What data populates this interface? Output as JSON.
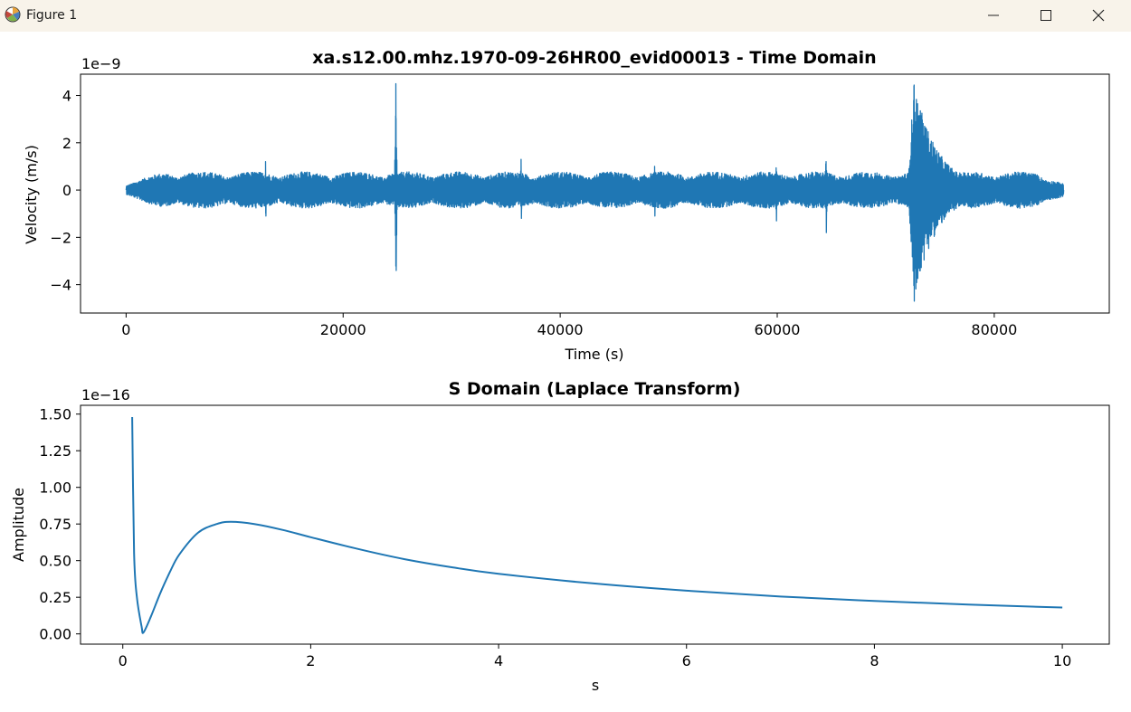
{
  "window": {
    "title": "Figure 1",
    "icon": "matplotlib-logo-icon",
    "buttons": [
      "minimize-icon",
      "maximize-icon",
      "close-icon"
    ]
  },
  "colors": {
    "line": "#1f77b4",
    "axes": "#000000",
    "titlebar": "#f8f3ea"
  },
  "chart_data": [
    {
      "type": "line",
      "title": "xa.s12.00.mhz.1970-09-26HR00_evid00013 - Time Domain",
      "xlabel": "Time (s)",
      "ylabel": "Velocity (m/s)",
      "y_offset_label": "1e−9",
      "xlim": [
        -4200,
        90600
      ],
      "ylim": [
        -5.2,
        4.9
      ],
      "x_ticks": [
        0,
        20000,
        40000,
        60000,
        80000
      ],
      "x_tick_labels": [
        "0",
        "20000",
        "40000",
        "60000",
        "80000"
      ],
      "y_ticks": [
        -4,
        -2,
        0,
        2,
        4
      ],
      "y_tick_labels": [
        "−4",
        "−2",
        "0",
        "2",
        "4"
      ],
      "grid": false,
      "legend": "none",
      "signal": {
        "duration": 86400,
        "noise_amplitude": 0.7
      },
      "events": [
        {
          "time": 12850,
          "max": 1.2,
          "min": -1.1
        },
        {
          "time": 24860,
          "max": 4.5,
          "min": -3.4
        },
        {
          "time": 36400,
          "max": 1.3,
          "min": -1.2
        },
        {
          "time": 48700,
          "max": 1.0,
          "min": -1.1
        },
        {
          "time": 59900,
          "max": 0.9,
          "min": -1.3
        },
        {
          "time": 64500,
          "max": 1.2,
          "min": -1.8
        },
        {
          "time": 72600,
          "max": 4.4,
          "min": -4.7
        }
      ]
    },
    {
      "type": "line",
      "title": "S Domain (Laplace Transform)",
      "xlabel": "s",
      "ylabel": "Amplitude",
      "y_offset_label": "1e−16",
      "xlim": [
        -0.45,
        10.5
      ],
      "ylim": [
        -0.07,
        1.56
      ],
      "x_ticks": [
        0,
        2,
        4,
        6,
        8,
        10
      ],
      "x_tick_labels": [
        "0",
        "2",
        "4",
        "6",
        "8",
        "10"
      ],
      "y_ticks": [
        0,
        0.25,
        0.5,
        0.75,
        1.0,
        1.25,
        1.5
      ],
      "y_tick_labels": [
        "0.00",
        "0.25",
        "0.50",
        "0.75",
        "1.00",
        "1.25",
        "1.50"
      ],
      "grid": false,
      "legend": "none",
      "x": [
        0.1,
        0.12,
        0.15,
        0.2,
        0.22,
        0.3,
        0.4,
        0.5,
        0.6,
        0.8,
        1.0,
        1.15,
        1.4,
        1.7,
        2.0,
        2.5,
        3.0,
        3.5,
        4.0,
        5.0,
        6.0,
        7.0,
        8.0,
        9.0,
        10.0
      ],
      "y": [
        1.48,
        0.55,
        0.25,
        0.05,
        0.01,
        0.12,
        0.28,
        0.42,
        0.54,
        0.69,
        0.75,
        0.765,
        0.75,
        0.71,
        0.66,
        0.58,
        0.51,
        0.455,
        0.41,
        0.345,
        0.295,
        0.255,
        0.225,
        0.2,
        0.18
      ]
    }
  ]
}
